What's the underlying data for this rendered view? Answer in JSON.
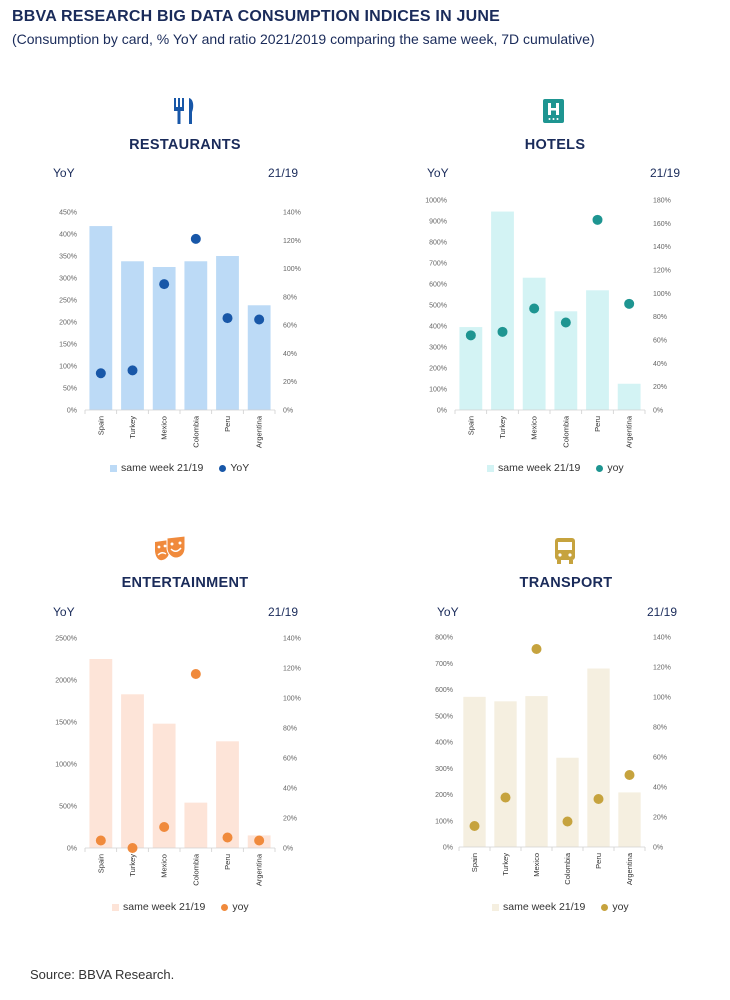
{
  "header": {
    "title": "BBVA RESEARCH BIG DATA CONSUMPTION INDICES IN JUNE",
    "subtitle": "(Consumption by card, % YoY and ratio 2021/2019 comparing the same week, 7D cumulative)"
  },
  "footer": {
    "source": "Source: BBVA Research."
  },
  "chart_data": [
    {
      "type": "bar",
      "title": "RESTAURANTS",
      "icon": "restaurant-icon",
      "left_axis_label": "YoY",
      "right_axis_label": "21/19",
      "categories": [
        "Spain",
        "Turkey",
        "Mexico",
        "Colombia",
        "Peru",
        "Argentina"
      ],
      "series": [
        {
          "name": "same week 21/19",
          "kind": "bar",
          "axis": "left",
          "values": [
            418,
            338,
            325,
            338,
            350,
            238
          ]
        },
        {
          "name": "YoY",
          "kind": "dot",
          "axis": "right",
          "values": [
            26,
            28,
            89,
            121,
            65,
            64
          ]
        }
      ],
      "left_axis": {
        "min": 0,
        "max": 450,
        "step": 50,
        "unit": "%",
        "ticks": [
          "0%",
          "50%",
          "100%",
          "150%",
          "200%",
          "250%",
          "300%",
          "350%",
          "400%",
          "450%"
        ]
      },
      "right_axis": {
        "min": 0,
        "max": 140,
        "step": 20,
        "unit": "%",
        "ticks": [
          "0%",
          "20%",
          "40%",
          "60%",
          "80%",
          "100%",
          "120%",
          "140%"
        ]
      },
      "colors": {
        "bar": "#bcdaf6",
        "dot": "#1857a8"
      },
      "legend": {
        "bar_label": "same week 21/19",
        "dot_label": "YoY"
      }
    },
    {
      "type": "bar",
      "title": "HOTELS",
      "icon": "hotel-icon",
      "left_axis_label": "YoY",
      "right_axis_label": "21/19",
      "categories": [
        "Spain",
        "Turkey",
        "Mexico",
        "Colombia",
        "Peru",
        "Argentina"
      ],
      "series": [
        {
          "name": "same week 21/19",
          "kind": "bar",
          "axis": "left",
          "values": [
            395,
            945,
            630,
            470,
            570,
            125
          ]
        },
        {
          "name": "yoy",
          "kind": "dot",
          "axis": "right",
          "values": [
            64,
            67,
            87,
            75,
            163,
            91
          ]
        }
      ],
      "left_axis": {
        "min": 0,
        "max": 1000,
        "step": 100,
        "unit": "%",
        "ticks": [
          "0%",
          "100%",
          "200%",
          "300%",
          "400%",
          "500%",
          "600%",
          "700%",
          "800%",
          "900%",
          "1000%"
        ]
      },
      "right_axis": {
        "min": 0,
        "max": 180,
        "step": 20,
        "unit": "%",
        "ticks": [
          "0%",
          "20%",
          "40%",
          "60%",
          "80%",
          "100%",
          "120%",
          "140%",
          "160%",
          "180%"
        ]
      },
      "colors": {
        "bar": "#d3f3f4",
        "dot": "#1e9591"
      },
      "legend": {
        "bar_label": "same week 21/19",
        "dot_label": "yoy"
      }
    },
    {
      "type": "bar",
      "title": "ENTERTAINMENT",
      "icon": "theater-masks-icon",
      "left_axis_label": "YoY",
      "right_axis_label": "21/19",
      "categories": [
        "Spain",
        "Turkey",
        "Mexico",
        "Colombia",
        "Peru",
        "Argentina"
      ],
      "series": [
        {
          "name": "same week 21/19",
          "kind": "bar",
          "axis": "left",
          "values": [
            2250,
            1830,
            1480,
            540,
            1270,
            150
          ]
        },
        {
          "name": "yoy",
          "kind": "dot",
          "axis": "right",
          "values": [
            5,
            0,
            14,
            116,
            7,
            5
          ]
        }
      ],
      "left_axis": {
        "min": 0,
        "max": 2500,
        "step": 500,
        "unit": "%",
        "ticks": [
          "0%",
          "500%",
          "1000%",
          "1500%",
          "2000%",
          "2500%"
        ]
      },
      "right_axis": {
        "min": 0,
        "max": 140,
        "step": 20,
        "unit": "%",
        "ticks": [
          "0%",
          "20%",
          "40%",
          "60%",
          "80%",
          "100%",
          "120%",
          "140%"
        ]
      },
      "colors": {
        "bar": "#fde4d8",
        "dot": "#f08a3c"
      },
      "legend": {
        "bar_label": "same week 21/19",
        "dot_label": "yoy"
      }
    },
    {
      "type": "bar",
      "title": "TRANSPORT",
      "icon": "bus-icon",
      "left_axis_label": "YoY",
      "right_axis_label": "21/19",
      "categories": [
        "Spain",
        "Turkey",
        "Mexico",
        "Colombia",
        "Peru",
        "Argentina"
      ],
      "series": [
        {
          "name": "same week 21/19",
          "kind": "bar",
          "axis": "left",
          "values": [
            572,
            555,
            575,
            340,
            680,
            208
          ]
        },
        {
          "name": "yoy",
          "kind": "dot",
          "axis": "right",
          "values": [
            14,
            33,
            132,
            17,
            32,
            48
          ]
        }
      ],
      "left_axis": {
        "min": 0,
        "max": 800,
        "step": 100,
        "unit": "%",
        "ticks": [
          "0%",
          "100%",
          "200%",
          "300%",
          "400%",
          "500%",
          "600%",
          "700%",
          "800%"
        ]
      },
      "right_axis": {
        "min": 0,
        "max": 140,
        "step": 20,
        "unit": "%",
        "ticks": [
          "0%",
          "20%",
          "40%",
          "60%",
          "80%",
          "100%",
          "120%",
          "140%"
        ]
      },
      "colors": {
        "bar": "#f5efe0",
        "dot": "#c6a33e"
      },
      "legend": {
        "bar_label": "same week 21/19",
        "dot_label": "yoy"
      }
    }
  ]
}
